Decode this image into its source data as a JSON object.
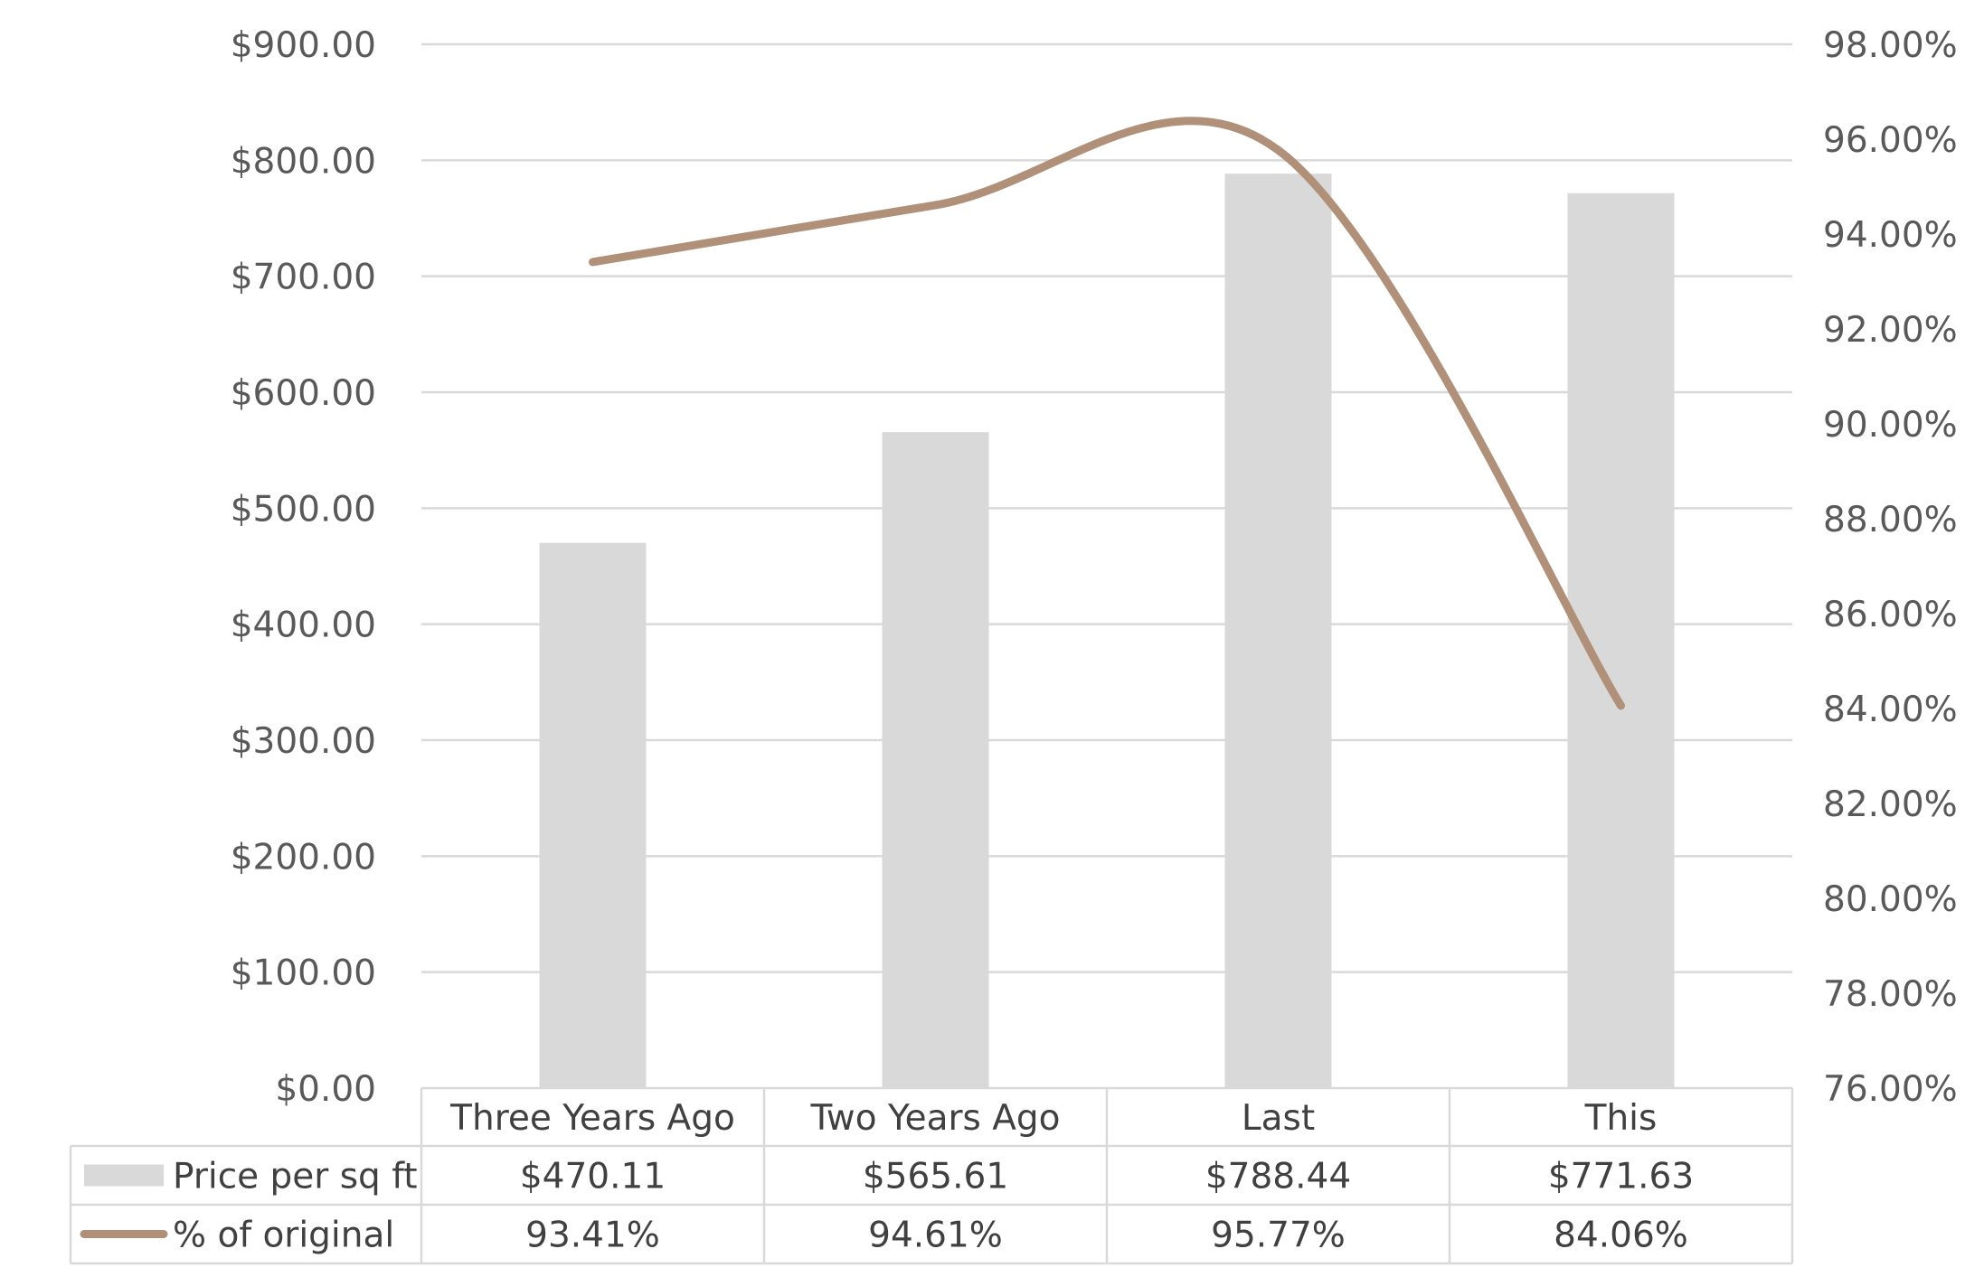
{
  "chart_data": {
    "type": "bar",
    "categories": [
      "Three Years Ago",
      "Two Years Ago",
      "Last",
      "This"
    ],
    "series": [
      {
        "name": "Price per sq ft",
        "type": "bar",
        "axis": "left",
        "color": "#d9d9d9",
        "values": [
          470.11,
          565.61,
          788.44,
          771.63
        ],
        "labels": [
          "$470.11",
          "$565.61",
          "$788.44",
          "$771.63"
        ]
      },
      {
        "name": "% of original",
        "type": "line",
        "smooth": true,
        "axis": "right",
        "color": "#b09078",
        "values": [
          93.41,
          94.61,
          95.77,
          84.06
        ],
        "labels": [
          "93.41%",
          "94.61%",
          "95.77%",
          "84.06%"
        ]
      }
    ],
    "y_left": {
      "range": [
        0,
        900
      ],
      "ticks": [
        0,
        100,
        200,
        300,
        400,
        500,
        600,
        700,
        800,
        900
      ],
      "tick_labels": [
        "$0.00",
        "$100.00",
        "$200.00",
        "$300.00",
        "$400.00",
        "$500.00",
        "$600.00",
        "$700.00",
        "$800.00",
        "$900.00"
      ]
    },
    "y_right": {
      "range": [
        76,
        98
      ],
      "ticks": [
        76,
        78,
        80,
        82,
        84,
        86,
        88,
        90,
        92,
        94,
        96,
        98
      ],
      "tick_labels": [
        "76.00%",
        "78.00%",
        "80.00%",
        "82.00%",
        "84.00%",
        "86.00%",
        "88.00%",
        "90.00%",
        "92.00%",
        "94.00%",
        "96.00%",
        "98.00%"
      ]
    },
    "grid": true,
    "legend": "data table",
    "title": "",
    "xlabel": "",
    "ylabel": ""
  }
}
